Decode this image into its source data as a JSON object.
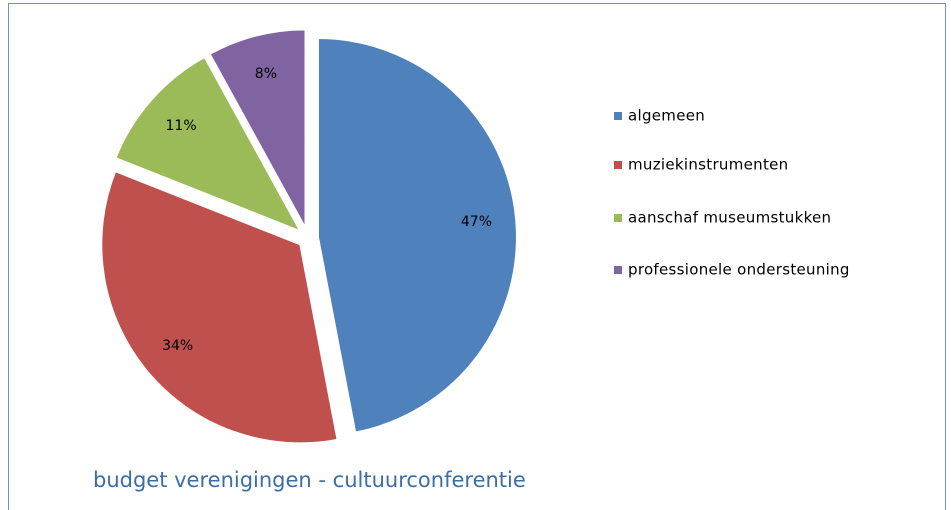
{
  "chart_data": {
    "type": "pie",
    "title": "budget verenigingen - cultuurconferentie",
    "categories": [
      "algemeen",
      "muziekinstrumenten",
      "aanschaf museumstukken",
      "professionele ondersteuning"
    ],
    "values": [
      47,
      34,
      11,
      8
    ],
    "value_labels": [
      "47%",
      "34%",
      "11%",
      "8%"
    ],
    "colors": [
      "#4f81bd",
      "#c0504d",
      "#9bbb59",
      "#8064a2"
    ],
    "legend": "right"
  }
}
